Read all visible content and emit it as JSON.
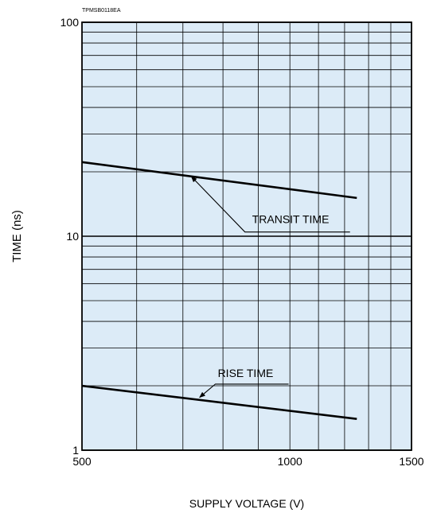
{
  "figure_code": "TPMSB0118EA",
  "colors": {
    "plot_background": "#dcebf7",
    "gridline": "#000000",
    "curve": "#000000",
    "frame": "#000000"
  },
  "chart_data": {
    "type": "line",
    "title": "",
    "xlabel": "SUPPLY VOLTAGE (V)",
    "ylabel": "TIME (ns)",
    "x_scale": "log",
    "y_scale": "log",
    "xlim": [
      500,
      1500
    ],
    "ylim": [
      1,
      100
    ],
    "x_ticks": [
      500,
      1000,
      1500
    ],
    "x_tick_labels": [
      "500",
      "1000",
      "1500"
    ],
    "y_ticks": [
      1,
      10,
      100
    ],
    "y_tick_labels": [
      "1",
      "10",
      "100"
    ],
    "x_minor_gridlines": [
      600,
      700,
      800,
      900,
      1000,
      1100,
      1200,
      1300,
      1400
    ],
    "y_minor_gridlines": [
      2,
      3,
      4,
      5,
      6,
      7,
      8,
      9,
      20,
      30,
      40,
      50,
      60,
      70,
      80,
      90
    ],
    "grid": true,
    "legend": "none",
    "series": [
      {
        "name": "TRANSIT TIME",
        "x": [
          500,
          1250
        ],
        "y": [
          22.2,
          15.1
        ],
        "label_anchor": [
          720,
          19.5
        ],
        "label_text_at": [
          870,
          11.5
        ]
      },
      {
        "name": "RISE TIME",
        "x": [
          500,
          1250
        ],
        "y": [
          2.0,
          1.4
        ],
        "label_anchor": [
          740,
          1.72
        ],
        "label_text_at": [
          780,
          2.2
        ]
      }
    ]
  }
}
